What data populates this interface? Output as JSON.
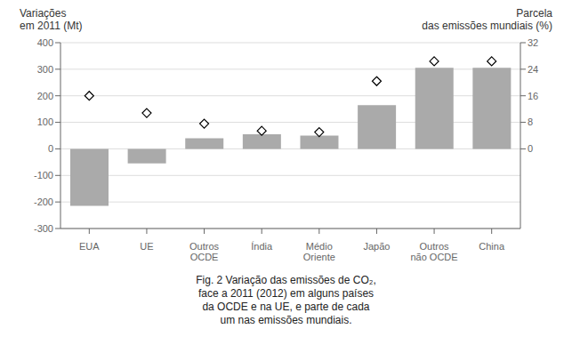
{
  "chart_data": {
    "type": "bar",
    "categories": [
      "EUA",
      "UE",
      "Outros\nOCDE",
      "Índia",
      "Médio\nOriente",
      "Japão",
      "Outros\nnão OCDE",
      "China"
    ],
    "series": [
      {
        "type": "bar",
        "color": "#aaaaaa",
        "values": [
          -215,
          -55,
          40,
          55,
          50,
          165,
          305,
          305
        ]
      },
      {
        "type": "scatter",
        "marker": "diamond",
        "color": "#ffffff",
        "values": [
          200,
          135,
          95,
          68,
          63,
          255,
          330,
          330
        ]
      }
    ],
    "ylabel": "Variações\nem 2011 (Mt)",
    "y2label": "Parcela\ndas emissões mundiais (%)",
    "ylim": [
      -300,
      400
    ],
    "yticks": [
      -300,
      -200,
      -100,
      0,
      100,
      200,
      300,
      400
    ],
    "y2lim": [
      -24,
      32
    ],
    "y2ticks": [
      0,
      8,
      16,
      24,
      32
    ],
    "grid": true,
    "annotations": [
      "Fig. 2 Variação das emissões de CO₂,\nface a 2011 (2012) em alguns países\nda OCDE e na UE, e parte de cada\num nas emissões mundiais."
    ]
  }
}
